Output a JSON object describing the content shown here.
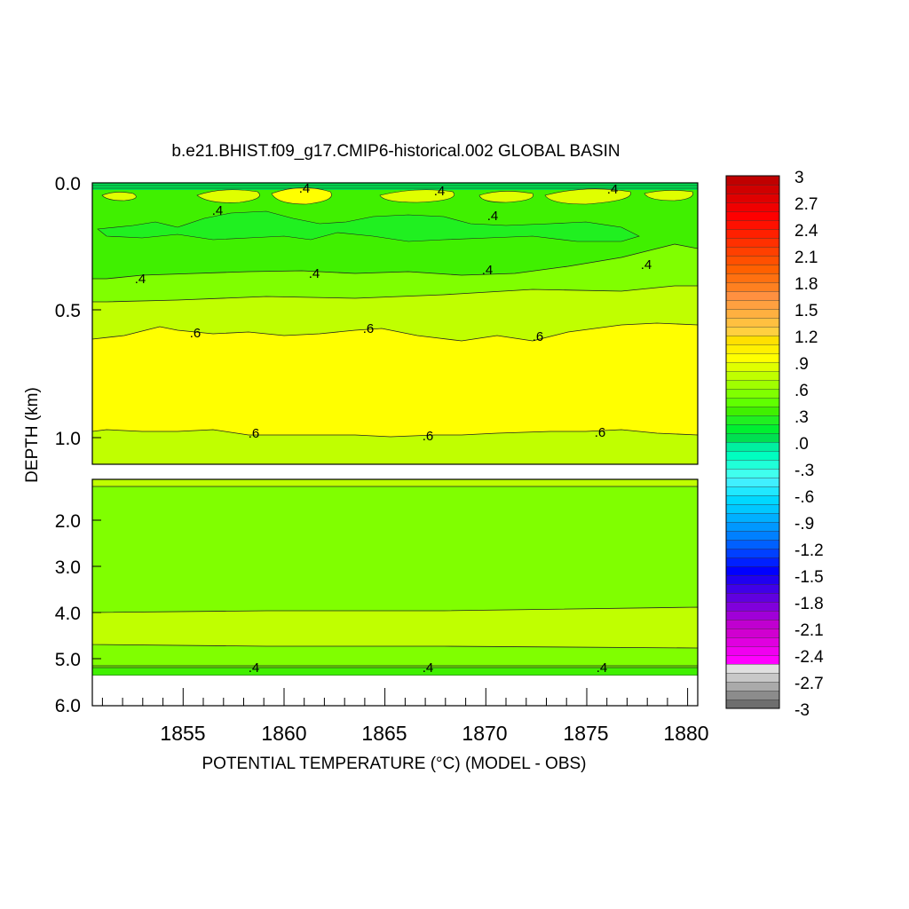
{
  "chart_data": {
    "type": "heatmap",
    "title": "b.e21.BHIST.f09_g17.CMIP6-historical.002 GLOBAL BASIN",
    "xlabel": "POTENTIAL TEMPERATURE (°C) (MODEL - OBS)",
    "ylabel": "DEPTH (km)",
    "xlim": [
      1850.5,
      1880.5
    ],
    "x_ticks": [
      "1855",
      "1860",
      "1865",
      "1870",
      "1875",
      "1880"
    ],
    "upper_panel": {
      "ylim": [
        0.0,
        1.1
      ],
      "y_ticks": [
        "0.0",
        "0.5",
        "1.0"
      ]
    },
    "lower_panel": {
      "ylim": [
        1.1,
        6.0
      ],
      "y_ticks": [
        "2.0",
        "3.0",
        "4.0",
        "5.0",
        "6.0"
      ]
    },
    "contour_labels": [
      ".4",
      ".6"
    ],
    "colorbar": {
      "min": -3,
      "max": 3,
      "step": 0.1,
      "tick_labels": [
        "3",
        "2.7",
        "2.4",
        "2.1",
        "1.8",
        "1.5",
        "1.2",
        ".9",
        ".6",
        ".3",
        ".0",
        "-.3",
        "-.6",
        "-.9",
        "-1.2",
        "-1.5",
        "-1.8",
        "-2.1",
        "-2.4",
        "-2.7",
        "-3"
      ],
      "palette": [
        "#6e6e6e",
        "#8c8c8c",
        "#aaaaaa",
        "#c8c8c8",
        "#e0e0e0",
        "#ff00ff",
        "#f000f0",
        "#e000e0",
        "#d000d0",
        "#c000d0",
        "#a000d8",
        "#8000dc",
        "#6000e0",
        "#4000e8",
        "#2000f0",
        "#0000ff",
        "#0020ff",
        "#0040ff",
        "#0060ff",
        "#0080ff",
        "#0098ff",
        "#00b0ff",
        "#00c8ff",
        "#00d8ff",
        "#20e8ff",
        "#40f0ff",
        "#40ffee",
        "#20ffd8",
        "#00ffc0",
        "#00f0a0",
        "#00e050",
        "#00f030",
        "#20f020",
        "#40f000",
        "#60ff00",
        "#80ff00",
        "#a0ff00",
        "#c0ff00",
        "#e0ff00",
        "#ffff00",
        "#fff000",
        "#ffe000",
        "#ffd040",
        "#ffc040",
        "#ffb040",
        "#ffa040",
        "#ff9040",
        "#ff8020",
        "#ff7010",
        "#ff6000",
        "#ff5000",
        "#ff4000",
        "#ff3000",
        "#ff2000",
        "#ff1000",
        "#ff0000",
        "#f00000",
        "#e00000",
        "#d00000",
        "#c00000"
      ]
    }
  }
}
